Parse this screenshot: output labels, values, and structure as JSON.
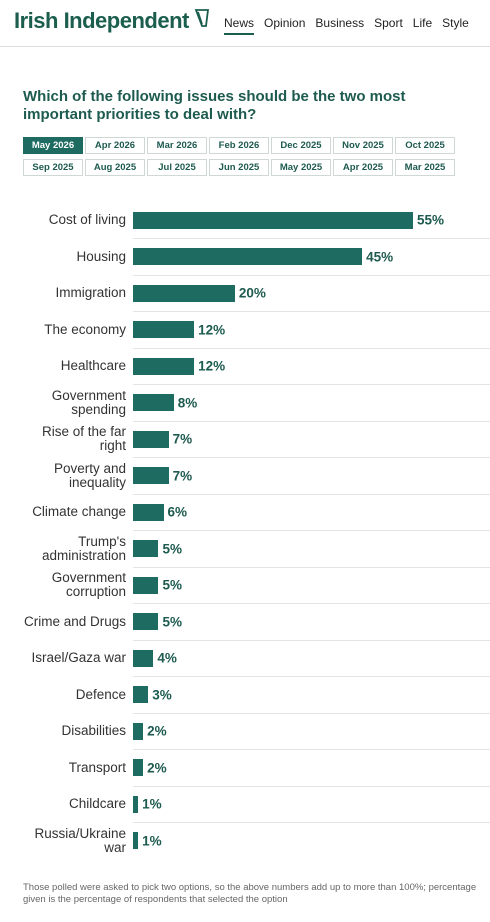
{
  "header": {
    "logo": "Irish Independent",
    "nav": [
      "News",
      "Opinion",
      "Business",
      "Sport",
      "Life",
      "Style"
    ]
  },
  "tabs": [
    [
      "May 2026",
      "Apr 2026",
      "Mar 2026",
      "Feb 2026",
      "Dec 2025",
      "Nov 2025",
      "Oct 2025"
    ],
    [
      "Sep 2025",
      "Aug 2025",
      "Jul 2025",
      "Jun 2025",
      "May 2025",
      "Apr 2025",
      "Mar 2025"
    ]
  ],
  "chart_data": {
    "type": "bar",
    "title": "Which of the following issues should be the two most important priorities to deal with?",
    "categories": [
      "Cost of living",
      "Housing",
      "Immigration",
      "The economy",
      "Healthcare",
      "Government spending",
      "Rise of the far right",
      "Poverty and inequality",
      "Climate change",
      "Trump's administration",
      "Government corruption",
      "Crime and Drugs",
      "Israel/Gaza war",
      "Defence",
      "Disabilities",
      "Transport",
      "Childcare",
      "Russia/Ukraine war"
    ],
    "values": [
      55,
      45,
      20,
      12,
      12,
      8,
      7,
      7,
      6,
      5,
      5,
      5,
      4,
      3,
      2,
      2,
      1,
      1
    ],
    "value_labels": [
      "55%",
      "45%",
      "20%",
      "12%",
      "12%",
      "8%",
      "7%",
      "7%",
      "6%",
      "5%",
      "5%",
      "5%",
      "4%",
      "3%",
      "2%",
      "2%",
      "1%",
      "1%"
    ],
    "color": "#1d6b61"
  },
  "footnote": "Those polled were asked to pick two options, so the above numbers add up to more than 100%; percentage given is the percentage of respondents that selected the option"
}
